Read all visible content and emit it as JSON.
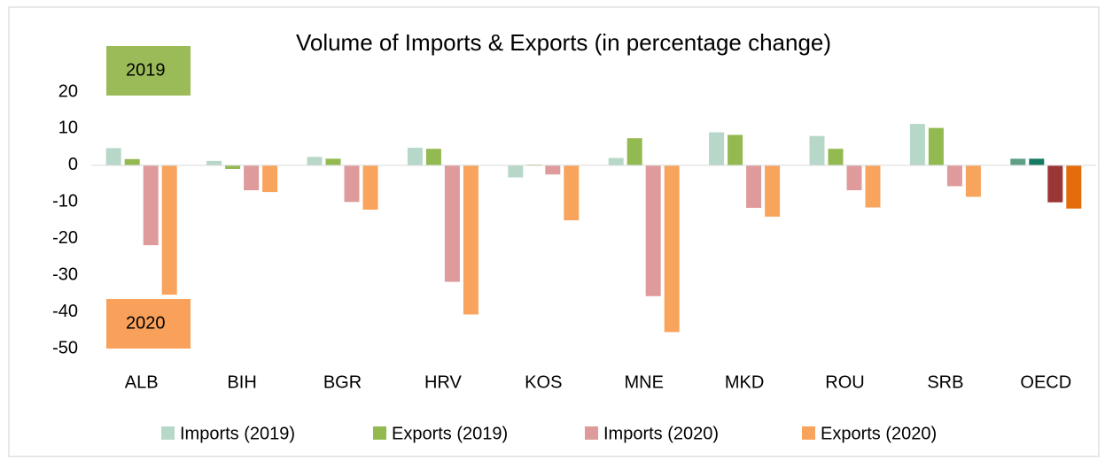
{
  "chart_data": {
    "type": "bar",
    "title": "Volume of Imports & Exports (in percentage change)",
    "categories": [
      "ALB",
      "BIH",
      "BGR",
      "HRV",
      "KOS",
      "MNE",
      "MKD",
      "ROU",
      "SRB",
      "OECD"
    ],
    "series": [
      {
        "name": "Imports (2019)",
        "color": "#b7d8c8",
        "values": [
          4.7,
          1.2,
          2.3,
          4.8,
          -3.3,
          2.0,
          9.0,
          8.0,
          11.3,
          1.8
        ],
        "colors": [
          "#b7d8c8",
          "#b7d8c8",
          "#b7d8c8",
          "#b7d8c8",
          "#b7d8c8",
          "#b7d8c8",
          "#b7d8c8",
          "#b7d8c8",
          "#b7d8c8",
          "#5e9f85"
        ]
      },
      {
        "name": "Exports (2019)",
        "color": "#92ba50",
        "values": [
          1.7,
          -1.0,
          1.8,
          4.5,
          0.2,
          7.4,
          8.3,
          4.5,
          10.2,
          1.8
        ],
        "colors": [
          "#92ba50",
          "#92ba50",
          "#92ba50",
          "#92ba50",
          "#92ba50",
          "#92ba50",
          "#92ba50",
          "#92ba50",
          "#92ba50",
          "#157a63"
        ]
      },
      {
        "name": "Imports (2020)",
        "color": "#df9b9b",
        "values": [
          -21.8,
          -6.8,
          -10.0,
          -31.8,
          -2.5,
          -35.7,
          -11.6,
          -6.8,
          -5.7,
          -10.1
        ],
        "colors": [
          "#df9b9b",
          "#df9b9b",
          "#df9b9b",
          "#df9b9b",
          "#df9b9b",
          "#df9b9b",
          "#df9b9b",
          "#df9b9b",
          "#df9b9b",
          "#9a3636"
        ]
      },
      {
        "name": "Exports (2020)",
        "color": "#f8a45c",
        "values": [
          -35.3,
          -7.3,
          -12.1,
          -40.7,
          -15.0,
          -45.5,
          -14.0,
          -11.5,
          -8.6,
          -11.8
        ],
        "colors": [
          "#f8a45c",
          "#f8a45c",
          "#f8a45c",
          "#f8a45c",
          "#f8a45c",
          "#f8a45c",
          "#f8a45c",
          "#f8a45c",
          "#f8a45c",
          "#e46c0a"
        ]
      }
    ],
    "ylim": [
      -50,
      20
    ],
    "yticks": [
      -50,
      -40,
      -30,
      -20,
      -10,
      0,
      10,
      20
    ],
    "grid": false,
    "legend": "bottom",
    "annotations": [
      {
        "text": "2019",
        "color": "#9bbb59"
      },
      {
        "text": "2020",
        "color": "#f9a15a"
      }
    ]
  }
}
